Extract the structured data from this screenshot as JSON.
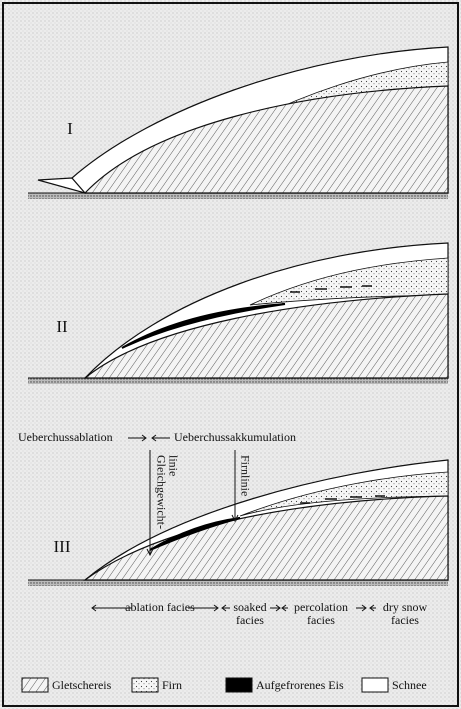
{
  "panels": [
    {
      "label": "I"
    },
    {
      "label": "II"
    },
    {
      "label": "III"
    }
  ],
  "zones": {
    "ablation": "Ueberchussablation",
    "accumulation": "Ueberchussakkumulation"
  },
  "lines": {
    "equilibrium": [
      "Gleichgewicht-",
      "linie"
    ],
    "firn": "Firnlinie"
  },
  "facies": [
    [
      "ablation facies"
    ],
    [
      "soaked",
      "facies"
    ],
    [
      "percolation",
      "facies"
    ],
    [
      "dry snow",
      "facies"
    ]
  ],
  "legend": [
    {
      "label": "Gletschereis"
    },
    {
      "label": "Firn"
    },
    {
      "label": "Aufgefrorenes Eis"
    },
    {
      "label": "Schnee"
    }
  ]
}
